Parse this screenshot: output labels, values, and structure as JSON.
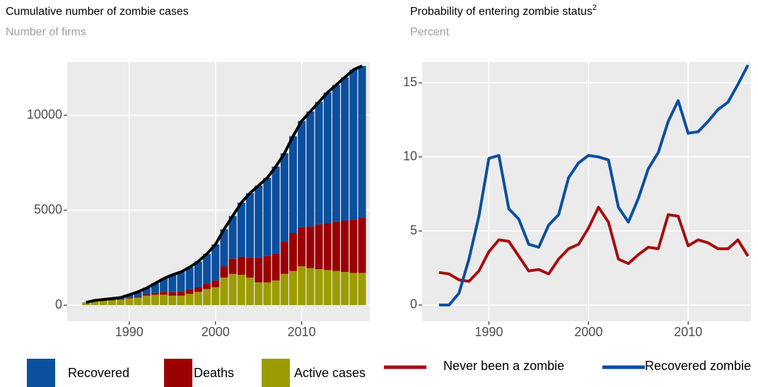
{
  "chart_data": [
    {
      "type": "bar",
      "stacked": true,
      "title": "Cumulative number of zombie cases",
      "subtitle": "Number of firms",
      "x": [
        1985,
        1986,
        1987,
        1988,
        1989,
        1990,
        1991,
        1992,
        1993,
        1994,
        1995,
        1996,
        1997,
        1998,
        1999,
        2000,
        2001,
        2002,
        2003,
        2004,
        2005,
        2006,
        2007,
        2008,
        2009,
        2010,
        2011,
        2012,
        2013,
        2014,
        2015,
        2016,
        2017
      ],
      "series": [
        {
          "name": "Recovered",
          "color": "#0b4f9f",
          "values": [
            0,
            50,
            70,
            80,
            100,
            170,
            250,
            320,
            500,
            700,
            920,
            1050,
            1180,
            1350,
            1550,
            1900,
            1950,
            2250,
            2850,
            3400,
            3800,
            4100,
            4600,
            4650,
            5100,
            5600,
            6050,
            6450,
            6900,
            7200,
            7550,
            7900,
            8000
          ]
        },
        {
          "name": "Deaths",
          "color": "#9b0000",
          "values": [
            0,
            0,
            0,
            20,
            20,
            30,
            50,
            80,
            100,
            150,
            180,
            200,
            220,
            250,
            300,
            350,
            600,
            800,
            950,
            1050,
            1300,
            1400,
            1400,
            1700,
            2000,
            2050,
            2200,
            2350,
            2450,
            2600,
            2700,
            2800,
            2900
          ]
        },
        {
          "name": "Active cases",
          "color": "#9c9c00",
          "values": [
            150,
            200,
            230,
            250,
            280,
            350,
            400,
            500,
            550,
            550,
            500,
            500,
            600,
            700,
            850,
            950,
            1450,
            1650,
            1600,
            1450,
            1200,
            1200,
            1300,
            1650,
            1800,
            2050,
            1950,
            1900,
            1850,
            1800,
            1750,
            1700,
            1700
          ]
        }
      ],
      "total_line_color": "#000000",
      "xlim": [
        1982.8,
        2017.9
      ],
      "xticks": [
        1990,
        2000,
        2010
      ],
      "ylim": [
        -850,
        12800
      ],
      "yticks": [
        0,
        5000,
        10000
      ],
      "grid": true,
      "legend": "bottom"
    },
    {
      "type": "line",
      "title": "Probability of entering zombie status",
      "title_superscript": "2",
      "subtitle": "Percent",
      "x": [
        1985,
        1986,
        1987,
        1988,
        1989,
        1990,
        1991,
        1992,
        1993,
        1994,
        1995,
        1996,
        1997,
        1998,
        1999,
        2000,
        2001,
        2002,
        2003,
        2004,
        2005,
        2006,
        2007,
        2008,
        2009,
        2010,
        2011,
        2012,
        2013,
        2014,
        2015,
        2016
      ],
      "series": [
        {
          "name": "Never been a zombie",
          "color": "#a50f0f",
          "values": [
            2.2,
            2.1,
            1.7,
            1.6,
            2.3,
            3.6,
            4.4,
            4.3,
            3.3,
            2.3,
            2.4,
            2.1,
            3.1,
            3.8,
            4.1,
            5.2,
            6.6,
            5.6,
            3.1,
            2.8,
            3.4,
            3.9,
            3.8,
            6.1,
            6.0,
            4.0,
            4.4,
            4.2,
            3.8,
            3.8,
            4.4,
            3.3
          ]
        },
        {
          "name": "Recovered zombie",
          "color": "#0b4f9f",
          "values": [
            0,
            0,
            0.8,
            3.1,
            6.0,
            9.9,
            10.1,
            6.5,
            5.8,
            4.1,
            3.9,
            5.4,
            6.1,
            8.6,
            9.6,
            10.1,
            10.0,
            9.8,
            6.6,
            5.6,
            7.2,
            9.2,
            10.3,
            12.4,
            13.8,
            11.6,
            11.7,
            12.4,
            13.2,
            13.7,
            14.9,
            16.2
          ]
        }
      ],
      "xlim": [
        1983.3,
        2016.3
      ],
      "xticks": [
        1990,
        2000,
        2010
      ],
      "ylim": [
        -1.1,
        16.4
      ],
      "yticks": [
        0,
        5,
        10,
        15
      ],
      "grid": true,
      "legend": "bottom"
    }
  ]
}
